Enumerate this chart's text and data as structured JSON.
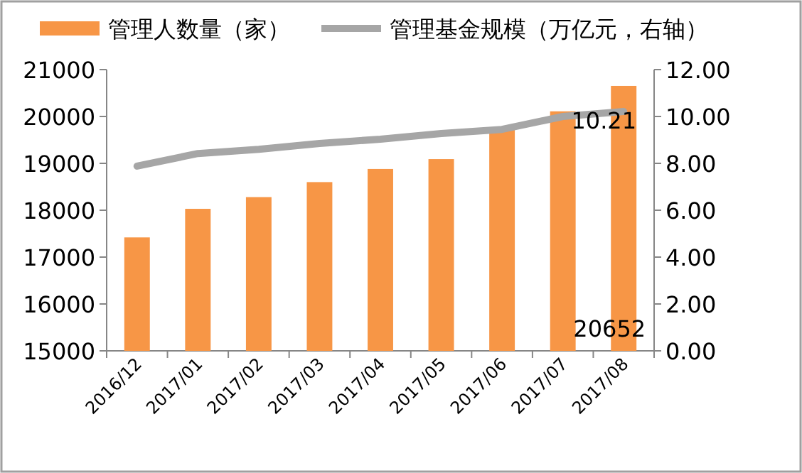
{
  "chart_data": {
    "type": "bar",
    "categories": [
      "2016/12",
      "2017/01",
      "2017/02",
      "2017/03",
      "2017/04",
      "2017/05",
      "2017/06",
      "2017/07",
      "2017/08"
    ],
    "series": [
      {
        "name": "管理人数量（家）",
        "color": "#f79646",
        "values": [
          17420,
          18030,
          18280,
          18600,
          18880,
          19090,
          19750,
          20110,
          20652
        ],
        "value_labels": [
          null,
          null,
          null,
          null,
          null,
          null,
          null,
          null,
          "20652"
        ]
      },
      {
        "name": "管理基金规模（万亿元，右轴）",
        "type": "line",
        "axis": "y2",
        "color": "#a6a6a6",
        "values": [
          7.88,
          8.42,
          8.6,
          8.85,
          9.03,
          9.27,
          9.45,
          10.0,
          10.21
        ],
        "value_labels": [
          null,
          null,
          null,
          null,
          null,
          null,
          null,
          null,
          "10.21"
        ]
      }
    ],
    "ylim": [
      15000,
      21000
    ],
    "yticks": [
      15000,
      16000,
      17000,
      18000,
      19000,
      20000,
      21000
    ],
    "y2lim": [
      0,
      12
    ],
    "y2ticks": [
      {
        "value": 0,
        "label": "0.00"
      },
      {
        "value": 2,
        "label": "2.00"
      },
      {
        "value": 4,
        "label": "4.00"
      },
      {
        "value": 6,
        "label": "6.00"
      },
      {
        "value": 8,
        "label": "8.00"
      },
      {
        "value": 10,
        "label": "10.00"
      },
      {
        "value": 12,
        "label": "12.00"
      }
    ],
    "legend": "top",
    "grid": false,
    "marker": "none",
    "line_style": "solid"
  }
}
